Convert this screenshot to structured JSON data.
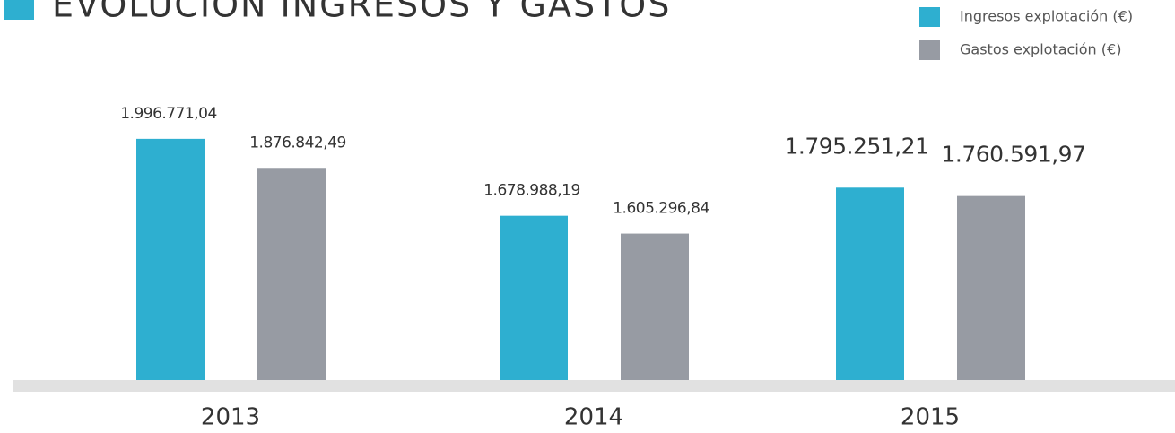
{
  "chart_data": {
    "type": "bar",
    "title": "EVOLUCIÓN INGRESOS Y GASTOS",
    "categories": [
      "2013",
      "2014",
      "2015"
    ],
    "series": [
      {
        "name": "Ingresos explotación (€)",
        "color": "#2eafd0",
        "values": [
          1996771.04,
          1678988.19,
          1795251.21
        ],
        "value_labels": [
          "1.996.771,04",
          "1.678.988,19",
          "1.795.251,21"
        ]
      },
      {
        "name": "Gastos explotación (€)",
        "color": "#979ba3",
        "values": [
          1876842.49,
          1605296.84,
          1760591.97
        ],
        "value_labels": [
          "1.876.842,49",
          "1.605.296,84",
          "1.760.591,97"
        ]
      }
    ],
    "ylim": [
      1000000,
      2000000
    ],
    "legend": "top-right"
  }
}
